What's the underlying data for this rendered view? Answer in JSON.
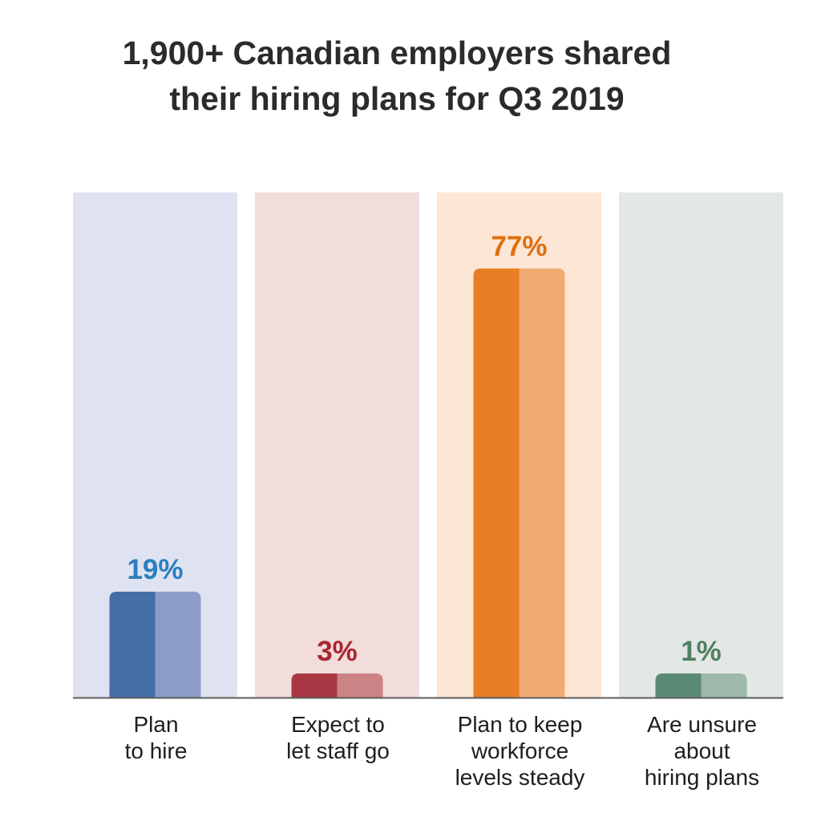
{
  "chart_data": {
    "type": "bar",
    "title": [
      "1,900+ Canadian employers shared",
      "their hiring plans for Q3 2019"
    ],
    "categories": [
      [
        "Plan",
        "to hire"
      ],
      [
        "Expect to",
        "let staff go"
      ],
      [
        "Plan to keep",
        "workforce",
        "levels steady"
      ],
      [
        "Are unsure",
        "about",
        "hiring plans"
      ]
    ],
    "values": [
      19,
      3,
      77,
      1
    ],
    "value_labels": [
      "19%",
      "3%",
      "77%",
      "1%"
    ],
    "ylim": [
      0,
      80
    ],
    "grid": false,
    "legend": "none",
    "colors": {
      "bars_dark": [
        "#466ea6",
        "#a83743",
        "#e77e24",
        "#5b8a74"
      ],
      "bars_light": [
        "#8b9dc6",
        "#cc8386",
        "#f0ab73",
        "#9eb8aa"
      ],
      "panels": [
        "#dfe3f1",
        "#f2dcdc",
        "#fde6d5",
        "#e3e7e5"
      ],
      "labels": [
        "#2a7fbf",
        "#a8252f",
        "#e06f10",
        "#4e8060"
      ]
    }
  }
}
